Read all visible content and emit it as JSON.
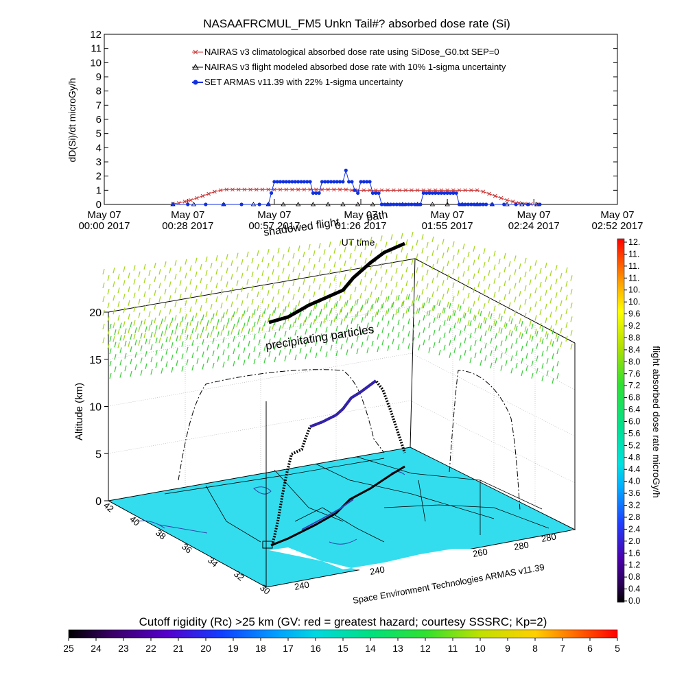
{
  "title": "NASAAFRCMUL_FM5 Unkn Tail#? absorbed dose rate (Si)",
  "watermark": "Space Environment Technologies ARMAS v11.39",
  "annotations": {
    "precipitating": "precipitating particles",
    "shadowed": "shadowed flight",
    "path": "path"
  },
  "colors": {
    "nairas_clim": "#cc3333",
    "nairas_model": "#000000",
    "armas": "#1030e0",
    "map_fill": "#33ddee"
  },
  "chart_data": [
    {
      "type": "line",
      "title": "NASAAFRCMUL_FM5 Unkn Tail#? absorbed dose rate (Si)",
      "xlabel": "UT time",
      "ylabel": "dD(Si)/dt microGy/h",
      "ylim": [
        0,
        12
      ],
      "xlim": [
        0,
        172
      ],
      "y_ticks": [
        "0",
        "1",
        "2",
        "3",
        "4",
        "5",
        "6",
        "7",
        "8",
        "9",
        "10",
        "11",
        "12"
      ],
      "x_ticks": [
        {
          "minute": 0,
          "line1": "May 07",
          "line2": "00:00 2017"
        },
        {
          "minute": 28,
          "line1": "May 07",
          "line2": "00:28 2017"
        },
        {
          "minute": 57,
          "line1": "May 07",
          "line2": "00:57 2017"
        },
        {
          "minute": 86,
          "line1": "May 07",
          "line2": "01:26 2017"
        },
        {
          "minute": 115,
          "line1": "May 07",
          "line2": "01:55 2017"
        },
        {
          "minute": 144,
          "line1": "May 07",
          "line2": "02:24 2017"
        },
        {
          "minute": 172,
          "line1": "May 07",
          "line2": "02:52 2017"
        }
      ],
      "legend_position": "top-left",
      "series": [
        {
          "name": "NAIRAS v3 climatological absorbed dose rate using SiDose_G0.txt SEP=0",
          "marker": "x",
          "x": [
            23,
            25,
            27,
            29,
            31,
            33,
            35,
            37,
            39,
            41,
            43,
            45,
            47,
            49,
            51,
            53,
            55,
            57,
            59,
            61,
            63,
            65,
            67,
            69,
            71,
            73,
            75,
            77,
            79,
            81,
            83,
            85,
            87,
            89,
            91,
            93,
            95,
            97,
            99,
            101,
            103,
            105,
            107,
            109,
            111,
            113,
            115,
            117,
            119,
            121,
            123,
            125,
            127,
            129,
            131,
            133,
            135,
            137,
            139,
            141,
            143,
            145
          ],
          "values": [
            0.05,
            0.1,
            0.2,
            0.3,
            0.45,
            0.6,
            0.75,
            0.9,
            1.0,
            1.05,
            1.05,
            1.05,
            1.05,
            1.05,
            1.05,
            1.05,
            1.05,
            1.05,
            1.05,
            1.05,
            1.05,
            1.05,
            1.05,
            1.05,
            1.05,
            1.05,
            1.05,
            1.05,
            1.05,
            1.05,
            1.0,
            1.0,
            1.0,
            1.0,
            1.0,
            1.0,
            1.0,
            1.0,
            1.0,
            1.0,
            1.0,
            1.0,
            1.0,
            1.0,
            1.0,
            1.0,
            1.0,
            1.0,
            1.0,
            1.0,
            1.0,
            1.0,
            0.9,
            0.75,
            0.6,
            0.45,
            0.3,
            0.2,
            0.1,
            0.05,
            0.02,
            0.0
          ]
        },
        {
          "name": "NAIRAS v3 flight modeled absorbed dose rate with 10% 1-sigma uncertainty",
          "marker": "triangle",
          "x": [
            23,
            30,
            40,
            50,
            55,
            60,
            65,
            70,
            75,
            80,
            85,
            90,
            95,
            100,
            105,
            110,
            115,
            120,
            125,
            130,
            135,
            140,
            145
          ],
          "values": [
            0,
            0,
            0,
            0,
            0,
            0,
            0,
            0,
            0,
            0,
            0,
            0,
            0,
            0,
            0,
            0,
            0,
            0,
            0,
            0,
            0,
            0,
            0
          ]
        },
        {
          "name": "SET ARMAS v11.39 with 22% 1-sigma uncertainty",
          "marker": "filled-circle",
          "x": [
            23,
            28,
            34,
            40,
            46,
            52,
            55,
            56,
            57,
            58,
            59,
            60,
            61,
            62,
            63,
            64,
            65,
            66,
            67,
            68,
            69,
            70,
            71,
            72,
            73,
            74,
            75,
            76,
            77,
            78,
            79,
            80,
            81,
            82,
            83,
            84,
            85,
            86,
            87,
            88,
            89,
            90,
            91,
            92,
            93,
            94,
            95,
            96,
            97,
            98,
            99,
            100,
            101,
            102,
            103,
            104,
            105,
            106,
            107,
            108,
            109,
            110,
            111,
            112,
            113,
            114,
            115,
            116,
            117,
            118,
            119,
            120,
            121,
            122,
            123,
            124,
            125,
            126,
            127,
            128,
            130,
            134,
            138,
            142,
            146
          ],
          "values": [
            0,
            0,
            0,
            0,
            0,
            0,
            0,
            0.8,
            1.6,
            1.6,
            1.6,
            1.6,
            1.6,
            1.6,
            1.6,
            1.6,
            1.6,
            1.6,
            1.6,
            1.6,
            1.6,
            0.8,
            0.8,
            0.8,
            1.6,
            1.6,
            1.6,
            1.6,
            1.6,
            1.6,
            1.6,
            1.6,
            2.4,
            1.6,
            1.6,
            1.0,
            0.8,
            1.6,
            1.6,
            1.6,
            1.6,
            0.8,
            0.8,
            0.8,
            0,
            0,
            0,
            0,
            0,
            0,
            0,
            0,
            0,
            0,
            0,
            0,
            0,
            0,
            0.8,
            0.8,
            0.8,
            0.8,
            0.8,
            0.8,
            0.8,
            0.8,
            0.8,
            0.8,
            0.8,
            0.8,
            0,
            0,
            0,
            0,
            0,
            0,
            0,
            0,
            0,
            0,
            0,
            0,
            0,
            0,
            0
          ]
        }
      ]
    },
    {
      "type": "scatter",
      "title": "",
      "xlabel": "",
      "ylabel": "Altitude (km)",
      "zlim": [
        0,
        20
      ],
      "z_ticks": [
        "0",
        "5",
        "10",
        "15",
        "20"
      ],
      "lat_ticks": [
        "42",
        "40",
        "38",
        "36",
        "34",
        "32",
        "30"
      ],
      "lon_ticks": [
        "240",
        "240",
        "260",
        "280",
        "280"
      ],
      "colorbar": {
        "label": "flight absorbed dose rate microGy/h",
        "ticks": [
          "0.0",
          "0.4",
          "0.8",
          "1.2",
          "1.6",
          "2.0",
          "2.4",
          "2.8",
          "3.2",
          "3.6",
          "4.0",
          "4.4",
          "4.8",
          "5.2",
          "5.6",
          "6.0",
          "6.4",
          "6.8",
          "7.2",
          "7.6",
          "8.0",
          "8.4",
          "8.8",
          "9.2",
          "9.6",
          "10.",
          "10.",
          "11.",
          "11.",
          "11.",
          "12."
        ]
      },
      "flight_path": {
        "name": "path",
        "altitude_km": [
          0.5,
          2,
          4,
          5,
          5.2,
          7.5,
          8,
          9,
          10,
          11,
          12,
          12.5,
          11,
          8,
          5
        ],
        "dose_rate": [
          0,
          0,
          0,
          0.4,
          0.5,
          1.0,
          1.2,
          1.4,
          1.6,
          1.8,
          2.0,
          1.5,
          0.4,
          0,
          0
        ]
      }
    },
    {
      "type": "heatmap",
      "title": "Cutoff rigidity (Rc) >25 km (GV: red = greatest hazard; courtesy SSSRC; Kp=2)",
      "colorbar": {
        "ticks": [
          "25",
          "24",
          "23",
          "22",
          "21",
          "20",
          "19",
          "18",
          "17",
          "16",
          "15",
          "14",
          "13",
          "12",
          "11",
          "10",
          "9",
          "8",
          "7",
          "6",
          "5"
        ]
      }
    }
  ]
}
